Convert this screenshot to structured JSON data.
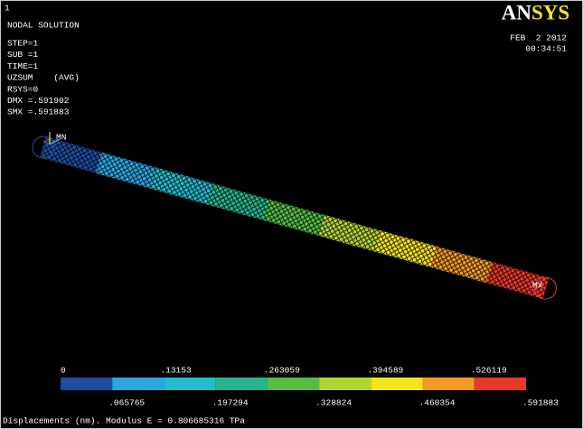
{
  "window_number": "1",
  "title": "NODAL SOLUTION",
  "info": [
    "STEP=1",
    "SUB =1",
    "TIME=1",
    "UZSUM    (AVG)",
    "RSYS=0",
    "DMX =.591902",
    "SMX =.591883"
  ],
  "date": "FEB  2 2012",
  "time": "00:34:51",
  "logo": [
    "AN",
    "SYS"
  ],
  "min_label": "MN",
  "max_label": "MX",
  "legend": {
    "colors": [
      "#1f4ea0",
      "#2aa9e0",
      "#22bccc",
      "#27b48f",
      "#55bb45",
      "#b4d433",
      "#f4e41c",
      "#f39a25",
      "#e8392b"
    ],
    "labels": [
      "0",
      ".065765",
      ".13153",
      ".197294",
      ".263059",
      ".328824",
      ".394589",
      ".460354",
      ".526119",
      ".591883"
    ]
  },
  "caption": "Displacements (nm). Modulus E = 0.806685316 TPa"
}
